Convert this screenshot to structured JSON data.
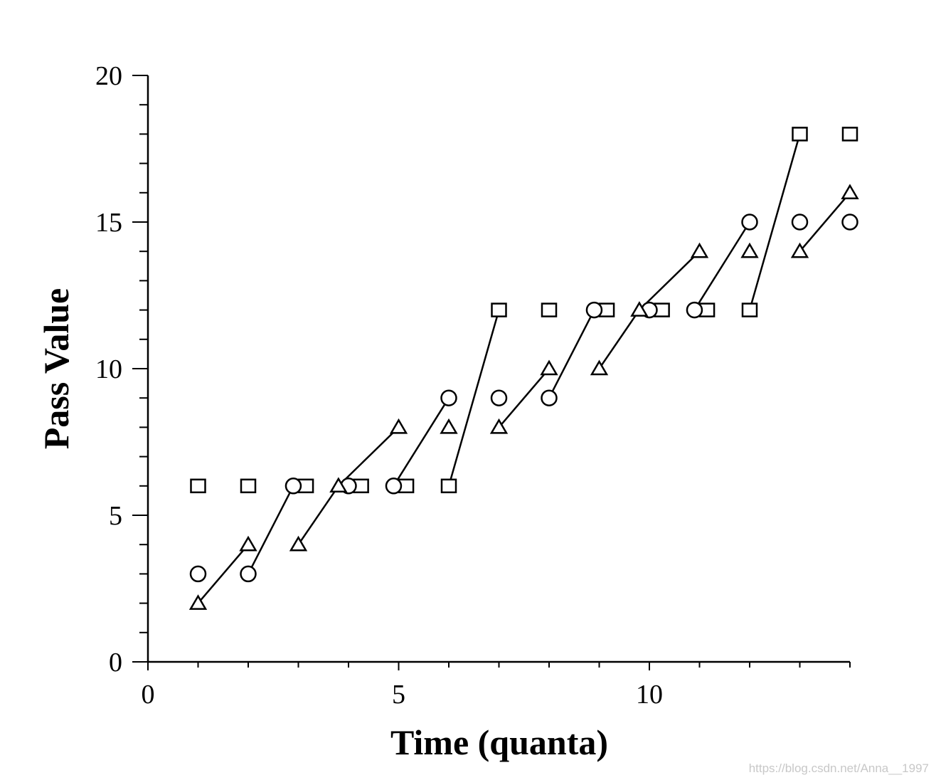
{
  "watermark": "https://blog.csdn.net/Anna__1997",
  "chart_data": {
    "type": "scatter",
    "title": "",
    "xlabel": "Time (quanta)",
    "ylabel": "Pass Value",
    "xlim": [
      0,
      14
    ],
    "ylim": [
      0,
      20
    ],
    "x_ticks": [
      0,
      5,
      10
    ],
    "y_ticks": [
      0,
      5,
      10,
      15,
      20
    ],
    "grid": false,
    "legend": "none",
    "series": [
      {
        "marker": "square",
        "points": [
          [
            1,
            6
          ],
          [
            2,
            6
          ],
          [
            3.15,
            6
          ],
          [
            4.25,
            6
          ],
          [
            5.15,
            6
          ],
          [
            6,
            6
          ],
          [
            7,
            12
          ],
          [
            8,
            12
          ],
          [
            9.15,
            12
          ],
          [
            10.25,
            12
          ],
          [
            11.15,
            12
          ],
          [
            12,
            12
          ],
          [
            13,
            18
          ],
          [
            14,
            18
          ]
        ]
      },
      {
        "marker": "circle",
        "points": [
          [
            1,
            3
          ],
          [
            2,
            3
          ],
          [
            2.9,
            6
          ],
          [
            4,
            6
          ],
          [
            4.9,
            6
          ],
          [
            6,
            9
          ],
          [
            7,
            9
          ],
          [
            8,
            9
          ],
          [
            8.9,
            12
          ],
          [
            10,
            12
          ],
          [
            10.9,
            12
          ],
          [
            12,
            15
          ],
          [
            13,
            15
          ],
          [
            14,
            15
          ]
        ]
      },
      {
        "marker": "triangle",
        "points": [
          [
            1,
            2
          ],
          [
            2,
            4
          ],
          [
            3,
            4
          ],
          [
            3.8,
            6
          ],
          [
            5,
            8
          ],
          [
            6,
            8
          ],
          [
            7,
            8
          ],
          [
            8,
            10
          ],
          [
            9,
            10
          ],
          [
            9.8,
            12
          ],
          [
            11,
            14
          ],
          [
            12,
            14
          ],
          [
            13,
            14
          ],
          [
            14,
            16
          ]
        ]
      }
    ],
    "segments": [
      {
        "from": [
          1,
          2
        ],
        "to": [
          2,
          4
        ]
      },
      {
        "from": [
          2,
          3
        ],
        "to": [
          2.9,
          6
        ]
      },
      {
        "from": [
          3,
          4
        ],
        "to": [
          3.8,
          6
        ]
      },
      {
        "from": [
          3.8,
          6
        ],
        "to": [
          5,
          8
        ]
      },
      {
        "from": [
          4.9,
          6
        ],
        "to": [
          6,
          9
        ]
      },
      {
        "from": [
          6,
          6
        ],
        "to": [
          7,
          12
        ]
      },
      {
        "from": [
          7,
          8
        ],
        "to": [
          8,
          10
        ]
      },
      {
        "from": [
          8,
          9
        ],
        "to": [
          8.9,
          12
        ]
      },
      {
        "from": [
          9,
          10
        ],
        "to": [
          9.8,
          12
        ]
      },
      {
        "from": [
          9.8,
          12
        ],
        "to": [
          11,
          14
        ]
      },
      {
        "from": [
          10.9,
          12
        ],
        "to": [
          12,
          15
        ]
      },
      {
        "from": [
          12,
          12
        ],
        "to": [
          13,
          18
        ]
      },
      {
        "from": [
          13,
          14
        ],
        "to": [
          14,
          16
        ]
      }
    ]
  }
}
